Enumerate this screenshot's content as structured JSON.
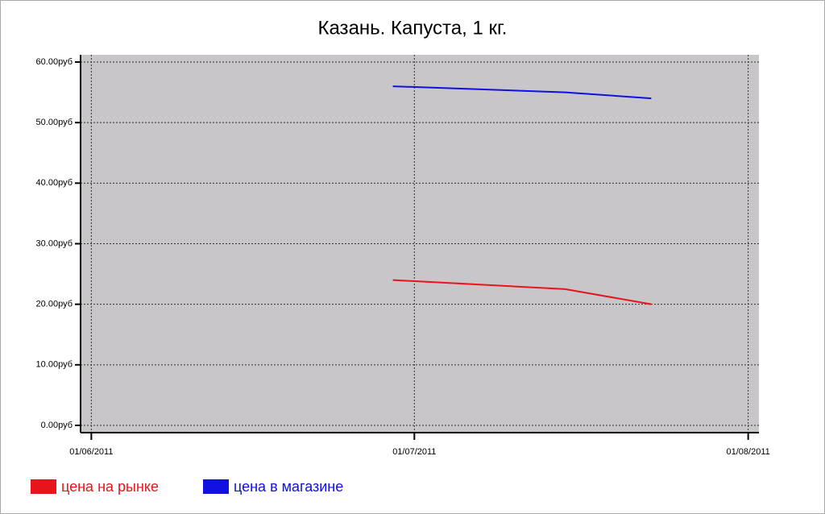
{
  "chart_data": {
    "type": "line",
    "title": "Казань. Капуста, 1 кг.",
    "x": [
      "2011-06-29",
      "2011-07-15",
      "2011-07-23"
    ],
    "series": [
      {
        "name": "цена на рынке",
        "color": "#e8141b",
        "values": [
          24,
          22.5,
          20
        ]
      },
      {
        "name": "цена в магазине",
        "color": "#1010e0",
        "values": [
          56,
          55,
          54
        ]
      }
    ],
    "xlim": [
      "2011-05-31",
      "2011-08-02"
    ],
    "xticks": [
      {
        "value": "2011-06-01",
        "label": "01/06/2011"
      },
      {
        "value": "2011-07-01",
        "label": "01/07/2011"
      },
      {
        "value": "2011-08-01",
        "label": "01/08/2011"
      }
    ],
    "ylim": [
      -1.2,
      61.2
    ],
    "yticks": [
      {
        "value": 0,
        "label": "0.00руб"
      },
      {
        "value": 10,
        "label": "10.00руб"
      },
      {
        "value": 20,
        "label": "20.00руб"
      },
      {
        "value": 30,
        "label": "30.00руб"
      },
      {
        "value": 40,
        "label": "40.00руб"
      },
      {
        "value": 50,
        "label": "50.00руб"
      },
      {
        "value": 60,
        "label": "60.00руб"
      }
    ],
    "grid": true,
    "legend": "bottom-left"
  }
}
